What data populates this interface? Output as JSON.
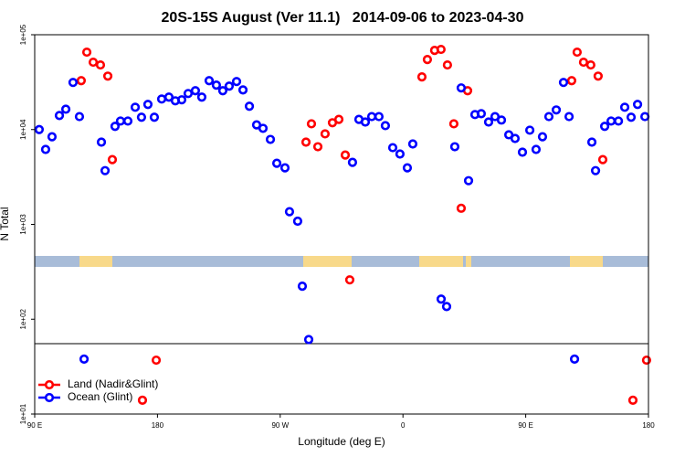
{
  "chart_data": {
    "type": "scatter",
    "title": "20S-15S August (Ver 11.1)   2014-09-06 to 2023-04-30",
    "xlabel": "Longitude (deg E)",
    "ylabel": "N Total",
    "xlim": [
      90,
      540
    ],
    "xticks": [
      {
        "value": 90,
        "label": "90 E"
      },
      {
        "value": 180,
        "label": "180"
      },
      {
        "value": 270,
        "label": "90 W"
      },
      {
        "value": 360,
        "label": "0"
      },
      {
        "value": 450,
        "label": "90 E"
      },
      {
        "value": 540,
        "label": "180"
      }
    ],
    "yscale": "log",
    "ylim": [
      10,
      100000
    ],
    "yticks": [
      {
        "value": 10,
        "label": "1e+01"
      },
      {
        "value": 100,
        "label": "1e+02"
      },
      {
        "value": 1000,
        "label": "1e+03"
      },
      {
        "value": 10000,
        "label": "1e+04"
      },
      {
        "value": 100000,
        "label": "1e+05"
      }
    ],
    "legend": "bottom-left",
    "series": [
      {
        "name": "Land (Nadir&Glint)",
        "color": "#ff0000",
        "x": [
          124.1,
          128.2,
          132.9,
          138.2,
          143.6,
          146.9,
          179.1,
          169,
          288.9,
          292.9,
          297.6,
          302.9,
          308.3,
          313,
          317.7,
          321,
          373.9,
          377.9,
          383.2,
          387.9,
          392.6,
          397.3,
          402.7,
          407.4,
          483.7,
          487.7,
          492.4,
          497.7,
          503.1,
          506.5,
          528.6,
          538.6
        ],
        "values": [
          32800,
          65500,
          51300,
          48000,
          36600,
          4820,
          37,
          14,
          7370,
          11500,
          6590,
          9010,
          11800,
          12800,
          5390,
          260,
          35900,
          54800,
          68400,
          70000,
          48000,
          11500,
          1480,
          25700,
          32800,
          65500,
          51300,
          48000,
          36600,
          4820,
          14,
          37
        ]
      },
      {
        "name": "Ocean (Glint)",
        "color": "#0000ff",
        "x": [
          93.3,
          98,
          102.7,
          108.1,
          112.8,
          118.1,
          122.8,
          126.2,
          138.9,
          141.6,
          148.9,
          152.9,
          158.3,
          163.7,
          168.3,
          173,
          177.7,
          183.1,
          188.4,
          193.1,
          197.8,
          202.5,
          207.8,
          212.5,
          217.9,
          223.2,
          227.9,
          232.6,
          238,
          242.7,
          247.4,
          252.7,
          257.4,
          262.8,
          267.5,
          273.5,
          276.8,
          282.8,
          286.2,
          290.9,
          323,
          327.7,
          332.4,
          337.1,
          342.4,
          347.1,
          352.5,
          357.8,
          363.2,
          367.2,
          388,
          392,
          398,
          402.7,
          408.1,
          412.8,
          417.4,
          422.8,
          427.5,
          432.2,
          437.6,
          442.2,
          447.6,
          453,
          457.6,
          462.3,
          467,
          472.4,
          477.7,
          481.8,
          485.8,
          498.5,
          501.2,
          507.9,
          512.6,
          518,
          522.6,
          527.3,
          532,
          537.4
        ],
        "values": [
          10000,
          6170,
          8400,
          14060,
          16400,
          31400,
          13700,
          38,
          7370,
          3690,
          10800,
          12300,
          12300,
          17200,
          13500,
          18400,
          13500,
          21000,
          22000,
          20100,
          20600,
          24000,
          25700,
          22000,
          32800,
          29400,
          25700,
          28700,
          32100,
          26200,
          17600,
          11200,
          10300,
          7870,
          4410,
          3950,
          1360,
          1080,
          223,
          61,
          4510,
          12800,
          12000,
          13700,
          13700,
          11000,
          6440,
          5520,
          3950,
          7050,
          163,
          136,
          6590,
          27500,
          2890,
          14400,
          14700,
          12000,
          13700,
          12600,
          8810,
          8050,
          5770,
          9850,
          6170,
          8400,
          13700,
          16100,
          31400,
          13700,
          38,
          7370,
          3690,
          10800,
          12300,
          12300,
          17200,
          13500,
          18400,
          13700
        ]
      }
    ]
  }
}
